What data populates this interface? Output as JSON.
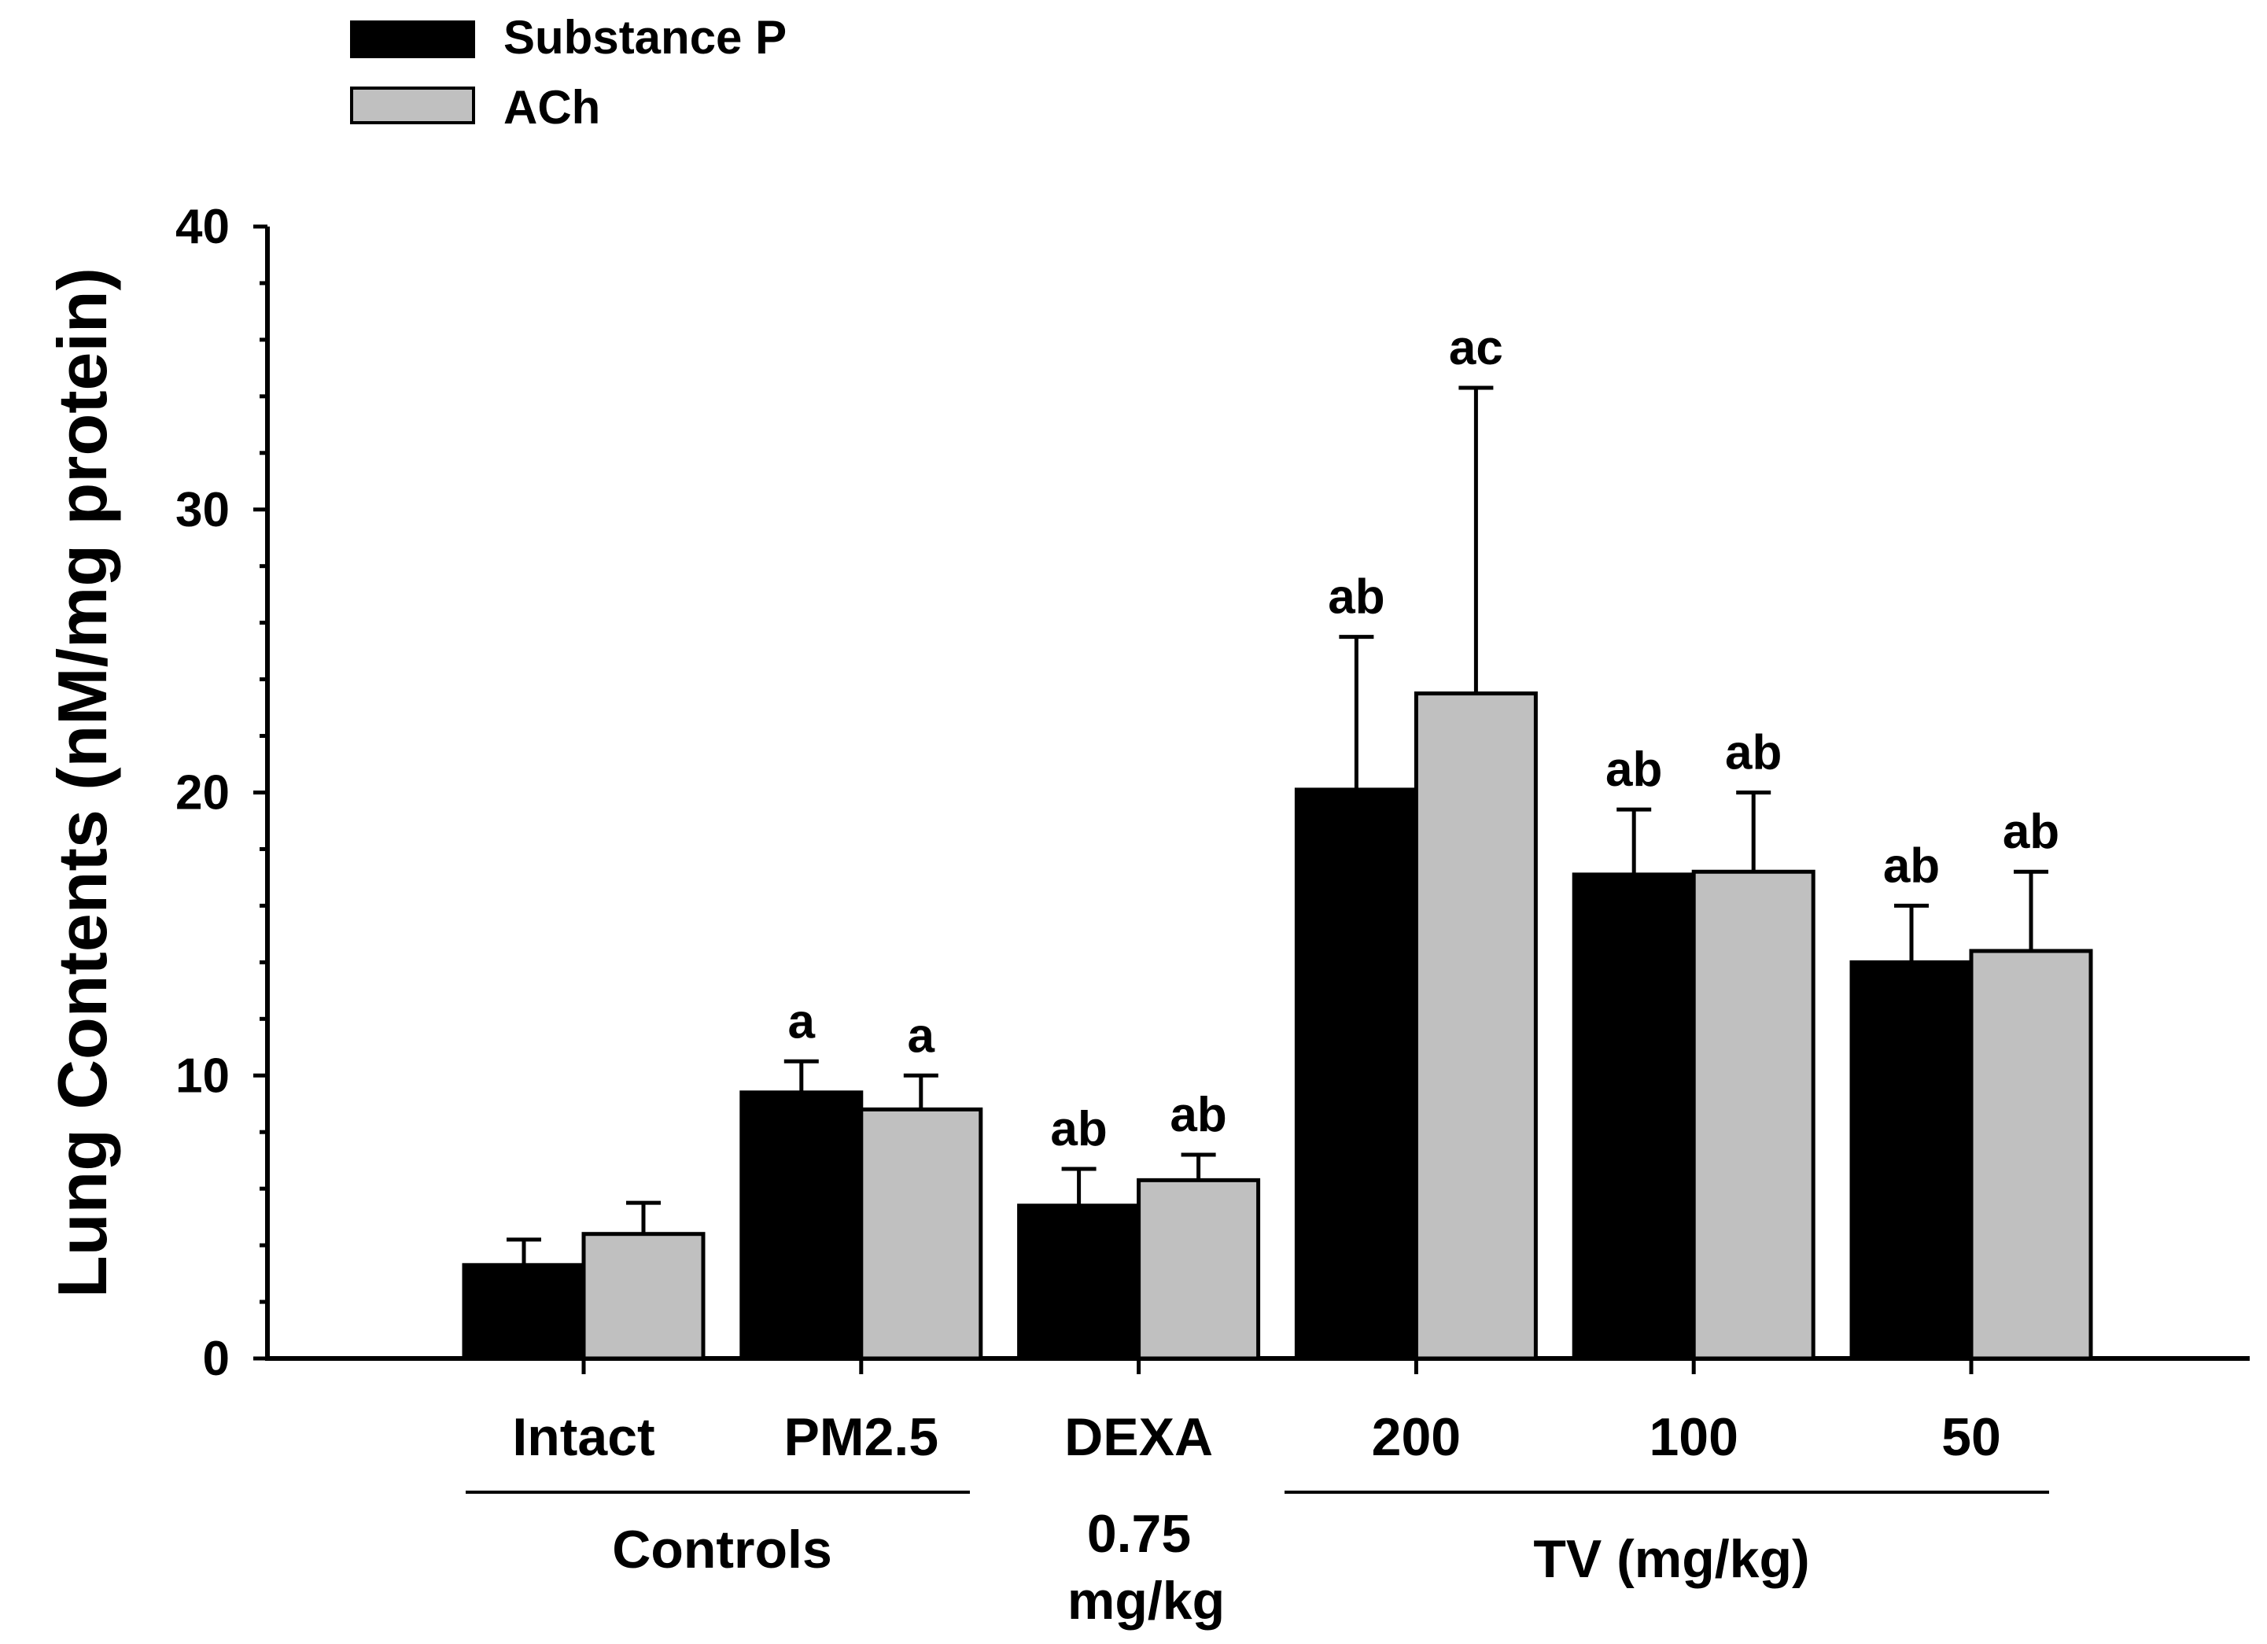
{
  "chart_data": {
    "type": "bar",
    "ylabel": "Lung Contents (nM/mg protein)",
    "ylim": [
      0,
      40
    ],
    "yticks": [
      0,
      10,
      20,
      30,
      40
    ],
    "grid": false,
    "legend_position": "top-left",
    "categories": [
      "Intact",
      "PM2.5",
      "DEXA",
      "200",
      "100",
      "50"
    ],
    "groups": [
      {
        "label": "Controls"
      },
      {
        "label": "0.75\nmg/kg",
        "line1": "0.75",
        "line2": "mg/kg"
      },
      {
        "label": "TV (mg/kg)"
      }
    ],
    "series": [
      {
        "name": "Substance P",
        "color": "#000000",
        "values": [
          3.3,
          9.4,
          5.4,
          20.1,
          17.1,
          14.0
        ],
        "errors": [
          0.9,
          1.1,
          1.3,
          5.4,
          2.3,
          2.0
        ],
        "labels": [
          "",
          "a",
          "ab",
          "ab",
          "ab",
          "ab"
        ]
      },
      {
        "name": "ACh",
        "color": "#c0c0c0",
        "values": [
          4.4,
          8.8,
          6.3,
          23.5,
          17.2,
          14.4
        ],
        "errors": [
          1.1,
          1.2,
          0.9,
          10.8,
          2.8,
          2.8
        ],
        "labels": [
          "",
          "a",
          "ab",
          "ac",
          "ab",
          "ab"
        ]
      }
    ]
  }
}
